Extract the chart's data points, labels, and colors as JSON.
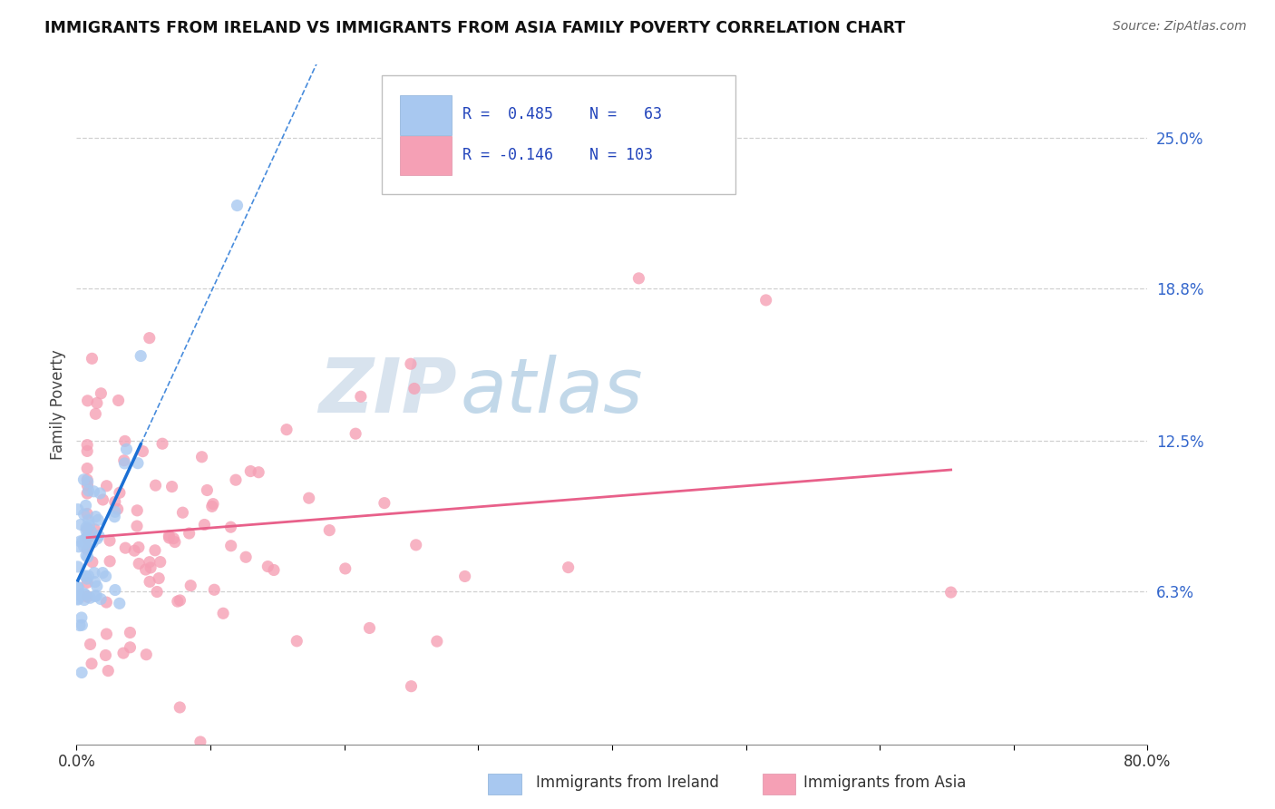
{
  "title": "IMMIGRANTS FROM IRELAND VS IMMIGRANTS FROM ASIA FAMILY POVERTY CORRELATION CHART",
  "source": "Source: ZipAtlas.com",
  "ylabel": "Family Poverty",
  "xlim": [
    0.0,
    0.8
  ],
  "ylim": [
    0.0,
    0.28
  ],
  "yticks": [
    0.0,
    0.063,
    0.125,
    0.188,
    0.25
  ],
  "ytick_labels": [
    "",
    "6.3%",
    "12.5%",
    "18.8%",
    "25.0%"
  ],
  "color_ireland": "#a8c8f0",
  "color_asia": "#f5a0b5",
  "line_color_ireland": "#1a6fd4",
  "line_color_asia": "#e8608a",
  "background_color": "#ffffff",
  "grid_color": "#d0d0d0",
  "watermark_zip": "ZIP",
  "watermark_atlas": "atlas",
  "r_ireland": 0.485,
  "n_ireland": 63,
  "r_asia": -0.146,
  "n_asia": 103
}
